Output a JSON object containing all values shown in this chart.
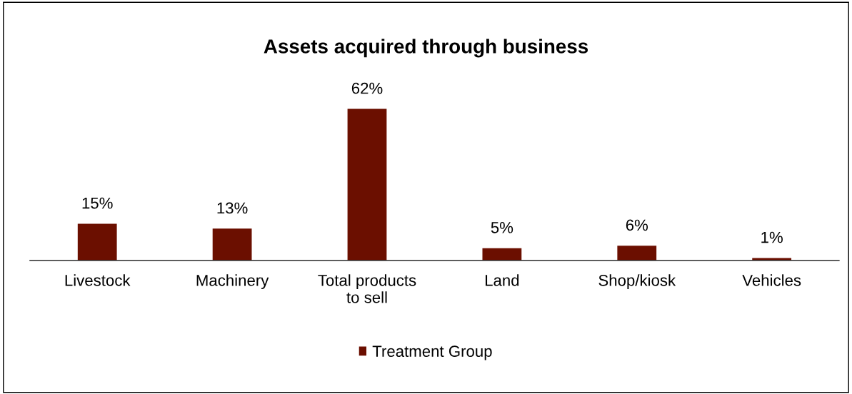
{
  "chart_data": {
    "type": "bar",
    "title": "Assets acquired through business",
    "categories": [
      "Livestock",
      "Machinery",
      "Total products to sell",
      "Land",
      "Shop/kiosk",
      "Vehicles"
    ],
    "series": [
      {
        "name": "Treatment Group",
        "color": "#6b0f00",
        "values": [
          15,
          13,
          62,
          5,
          6,
          1
        ],
        "value_labels": [
          "15%",
          "13%",
          "62%",
          "5%",
          "6%",
          "1%"
        ]
      }
    ],
    "legend": "bottom",
    "grid": false
  }
}
